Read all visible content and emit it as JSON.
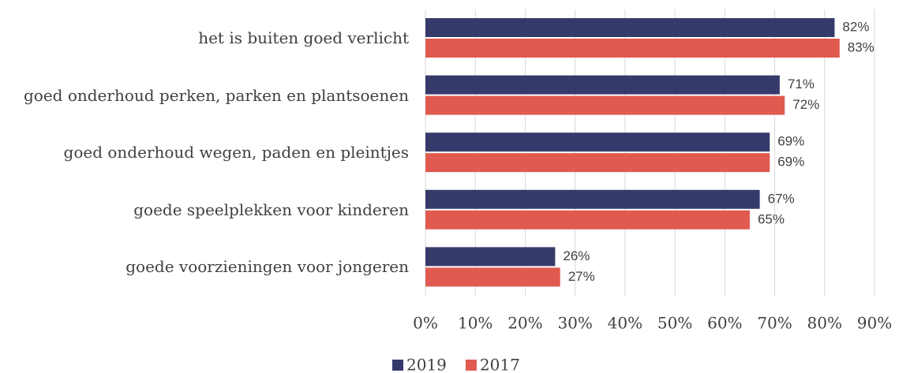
{
  "chart_data": {
    "type": "hbar",
    "categories": [
      "het is buiten goed verlicht",
      "goed onderhoud perken,  parken en plantsoenen",
      "goed onderhoud wegen, paden en pleintjes",
      "goede speelplekken voor kinderen",
      "goede voorzieningen voor jongeren"
    ],
    "series": [
      {
        "name": "2019",
        "color": "#363a6b",
        "values": [
          82,
          71,
          69,
          67,
          26
        ],
        "value_labels": [
          "82%",
          "71%",
          "69%",
          "67%",
          "26%"
        ]
      },
      {
        "name": "2017",
        "color": "#e05a4f",
        "values": [
          83,
          72,
          69,
          65,
          27
        ],
        "value_labels": [
          "83%",
          "72%",
          "69%",
          "65%",
          "27%"
        ]
      }
    ],
    "xlim": [
      0,
      90
    ],
    "xticks": [
      {
        "value": 0,
        "label": "0%"
      },
      {
        "value": 10,
        "label": "10%"
      },
      {
        "value": 20,
        "label": "20%"
      },
      {
        "value": 30,
        "label": "30%"
      },
      {
        "value": 40,
        "label": "40%"
      },
      {
        "value": 50,
        "label": "50%"
      },
      {
        "value": 60,
        "label": "60%"
      },
      {
        "value": 70,
        "label": "70%"
      },
      {
        "value": 80,
        "label": "80%"
      },
      {
        "value": 90,
        "label": "90%"
      }
    ],
    "grid": true,
    "legend": "bottom"
  }
}
